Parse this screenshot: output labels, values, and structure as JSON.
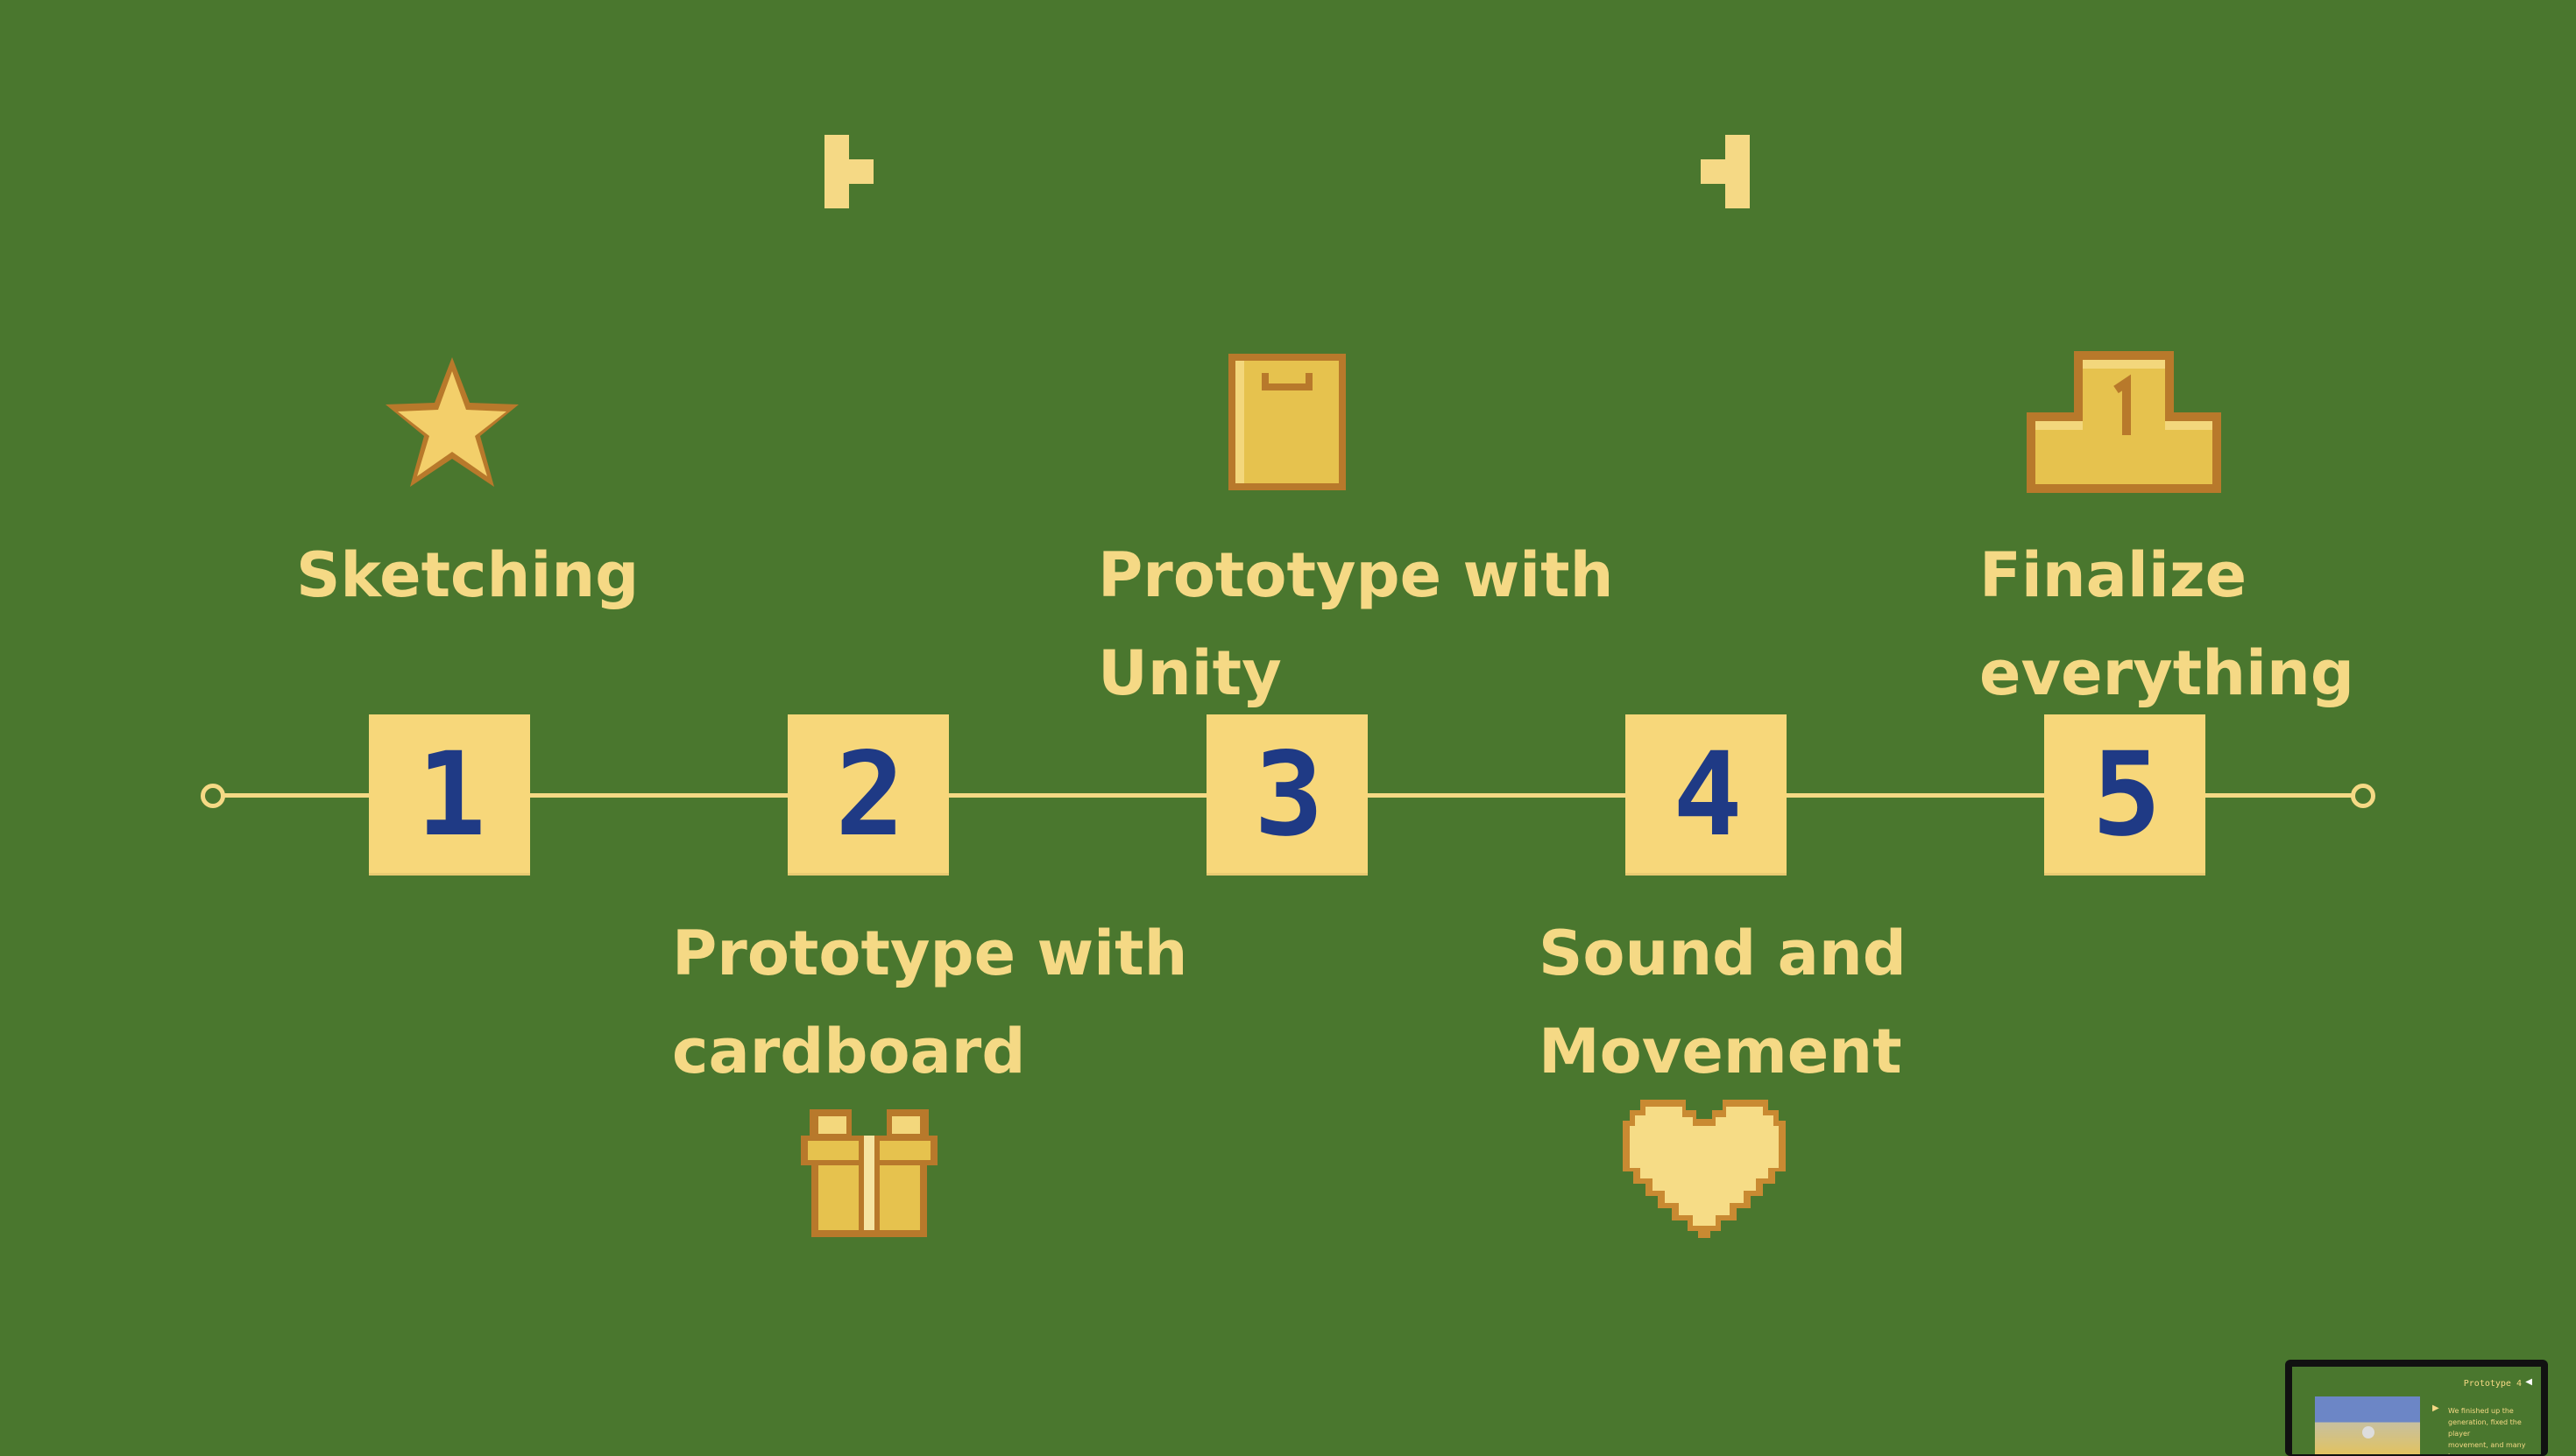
{
  "colors": {
    "background": "#4a772e",
    "accent": "#f5d985",
    "number_box": "#f7d77a",
    "number_text": "#1f3a85",
    "icon_fill": "#e6c24e",
    "icon_outline": "#b8792b"
  },
  "timeline": {
    "steps": [
      {
        "number": "1",
        "label_line1": "Sketching",
        "label_line2": "",
        "icon": "star-icon"
      },
      {
        "number": "2",
        "label_line1": "Prototype with",
        "label_line2": "cardboard",
        "icon": "gift-icon"
      },
      {
        "number": "3",
        "label_line1": "Prototype with",
        "label_line2": "Unity",
        "icon": "shopping-bag-icon"
      },
      {
        "number": "4",
        "label_line1": "Sound and",
        "label_line2": "Movement",
        "icon": "heart-icon"
      },
      {
        "number": "5",
        "label_line1": "Finalize",
        "label_line2": "everything",
        "icon": "podium-icon"
      }
    ]
  },
  "thumbnail": {
    "title": "Prototype 4",
    "text": "We finished up the\ngeneration, fixed the player\nmovement, and many bugs.\nAdditionally, we added in a"
  }
}
